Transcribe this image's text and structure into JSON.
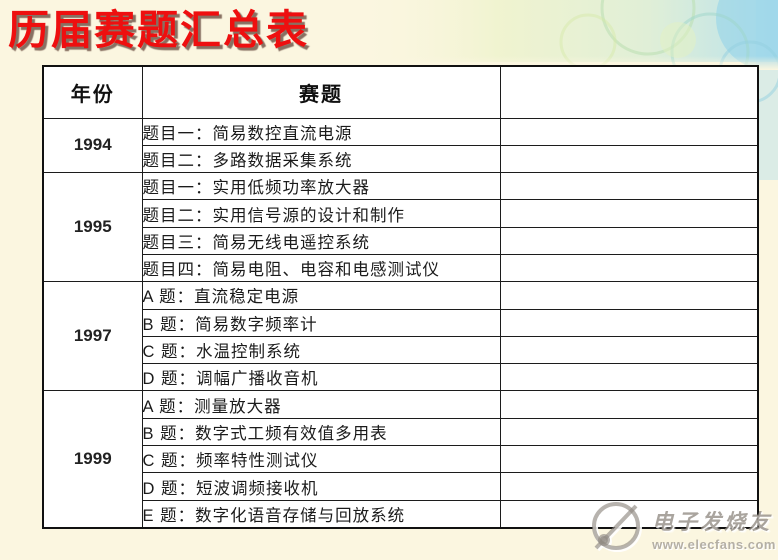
{
  "title": "历届赛题汇总表",
  "table": {
    "headers": [
      "年份",
      "赛题",
      ""
    ],
    "groups": [
      {
        "year": "1994",
        "topics": [
          "题目一：简易数控直流电源",
          "题目二：多路数据采集系统"
        ]
      },
      {
        "year": "1995",
        "topics": [
          "题目一：实用低频功率放大器",
          "题目二：实用信号源的设计和制作",
          "题目三：简易无线电遥控系统",
          "题目四：简易电阻、电容和电感测试仪"
        ]
      },
      {
        "year": "1997",
        "topics": [
          "A 题：直流稳定电源",
          "B 题：简易数字频率计",
          "C 题：水温控制系统",
          "D 题：调幅广播收音机"
        ]
      },
      {
        "year": "1999",
        "topics": [
          "A 题：测量放大器",
          "B 题：数字式工频有效值多用表",
          "C 题：频率特性测试仪",
          "D 题：短波调频接收机",
          "E 题：数字化语音存储与回放系统"
        ]
      }
    ]
  },
  "watermark": {
    "name": "电子发烧友",
    "url": "www.elecfans.com",
    "logo": "elecfans-circle-logo"
  },
  "colors": {
    "title_red": "#ee0f0f",
    "title_shadow": "#735848",
    "background_cream": "#fbf6e0",
    "table_border": "#1c1c1c",
    "cell_text": "#1b1b1b",
    "deco_green": "#dcedba",
    "deco_blue": "#aadcee",
    "watermark_gray": "#8c867d"
  }
}
